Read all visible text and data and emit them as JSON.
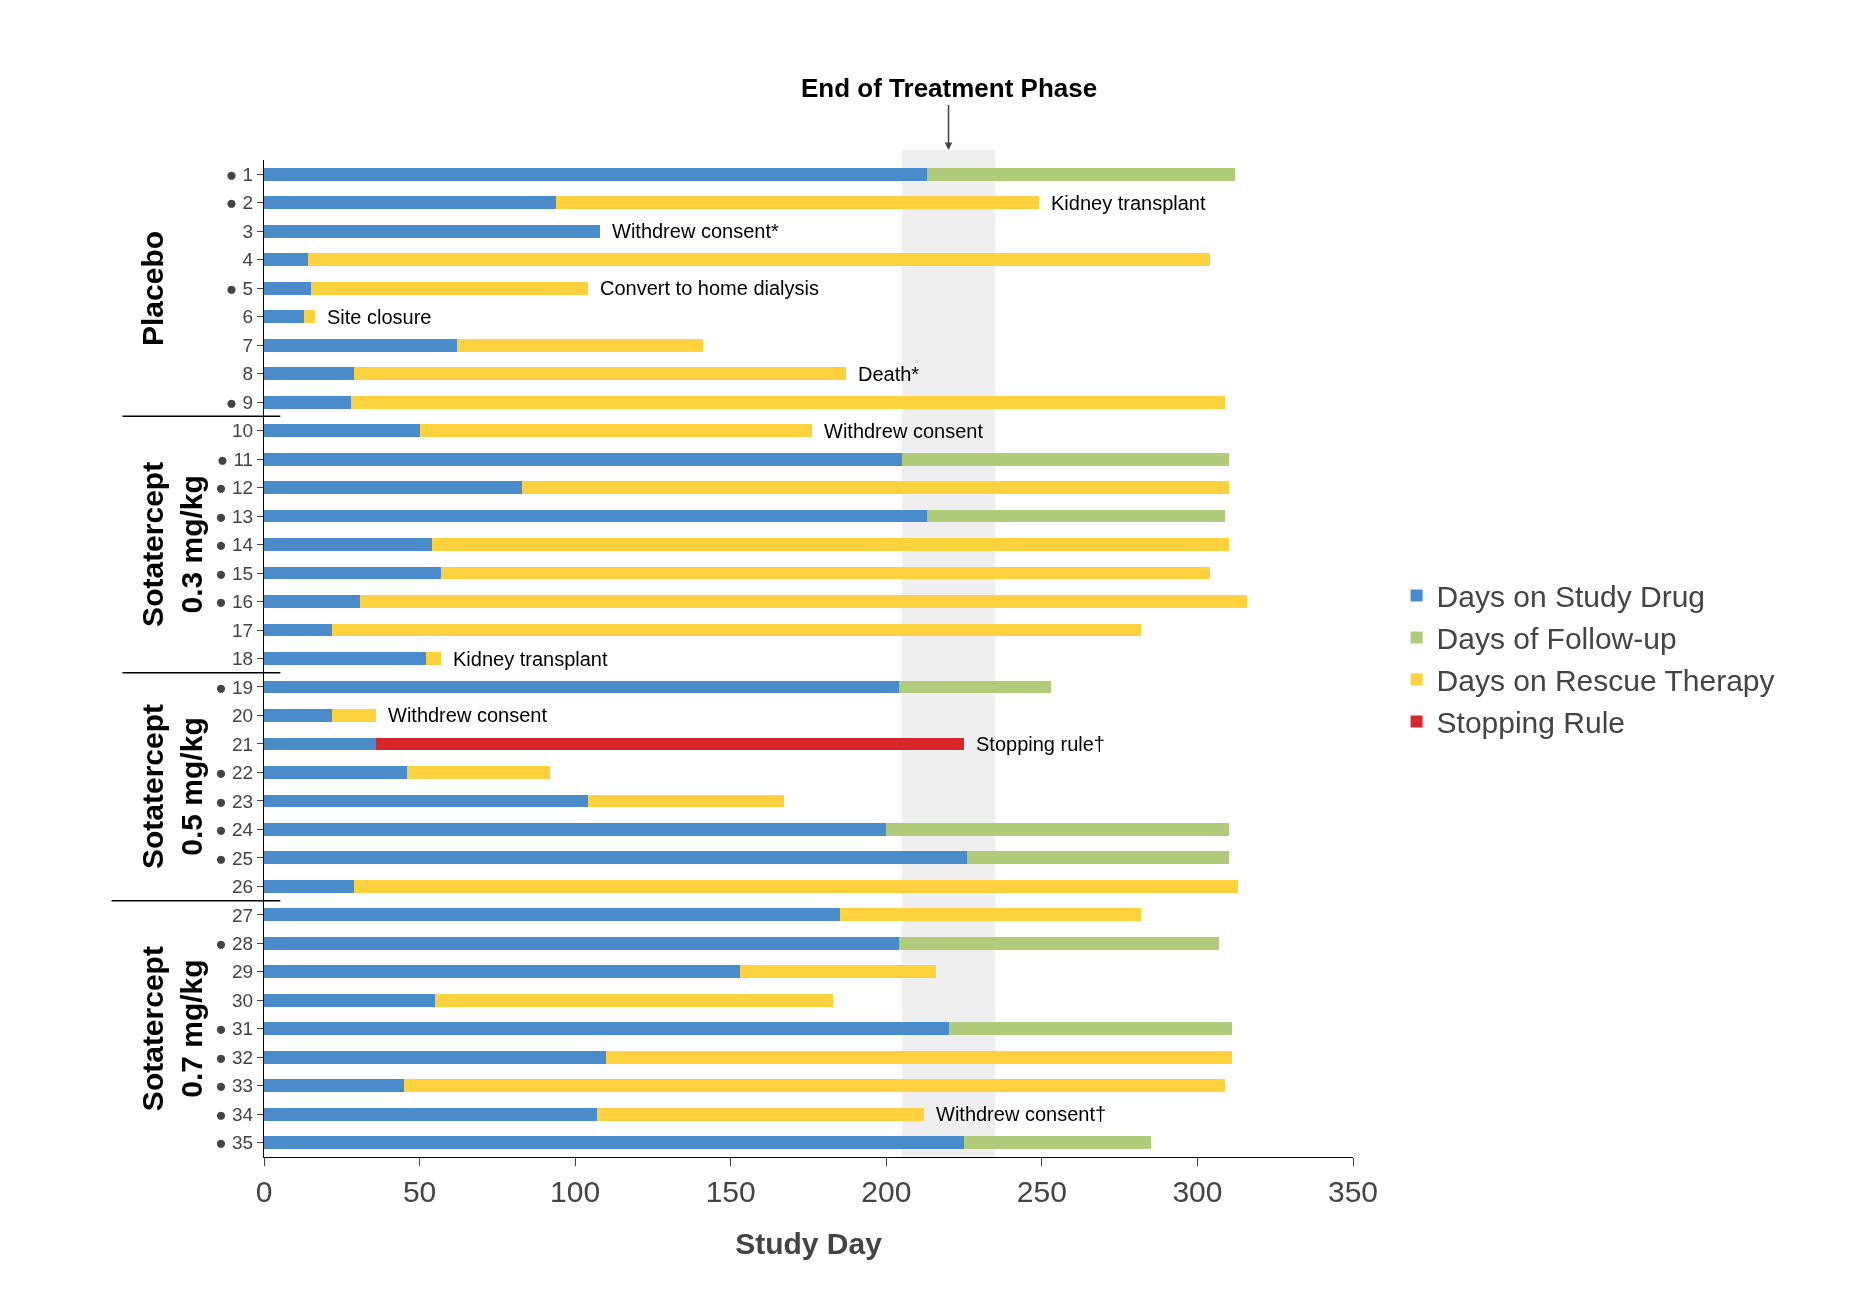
{
  "chart_data": {
    "type": "bar",
    "orientation": "horizontal",
    "stacked": true,
    "categories": [
      "● 1",
      "● 2",
      "3",
      "4",
      "● 5",
      "6",
      "7",
      "8",
      "● 9",
      "10",
      "● 11",
      "● 12",
      "● 13",
      "● 14",
      "● 15",
      "● 16",
      "17",
      "18",
      "● 19",
      "20",
      "21",
      "● 22",
      "● 23",
      "● 24",
      "● 25",
      "26",
      "27",
      "● 28",
      "29",
      "30",
      "● 31",
      "● 32",
      "● 33",
      "● 34",
      "● 35"
    ],
    "series": [
      {
        "name": "Days on Study Drug",
        "color": "#4a8ccb",
        "values": [
          213,
          94,
          108,
          14,
          15,
          13,
          62,
          29,
          28,
          50,
          205,
          83,
          213,
          54,
          57,
          31,
          22,
          52,
          204,
          22,
          36,
          46,
          104,
          200,
          226,
          29,
          185,
          204,
          153,
          55,
          220,
          110,
          45,
          107,
          225
        ]
      },
      {
        "name": "Days of Follow-up",
        "color": "#b0cc7a",
        "values": [
          99,
          null,
          null,
          null,
          null,
          null,
          null,
          null,
          null,
          null,
          105,
          null,
          96,
          null,
          null,
          null,
          null,
          null,
          49,
          null,
          null,
          null,
          null,
          110,
          84,
          null,
          null,
          103,
          null,
          null,
          91,
          null,
          null,
          null,
          60
        ]
      },
      {
        "name": "Days on Rescue Therapy",
        "color": "#fdd23e",
        "values": [
          null,
          155,
          null,
          290,
          89,
          3.5,
          79,
          158,
          281,
          126,
          null,
          227,
          null,
          256,
          247,
          285,
          260,
          5,
          null,
          14,
          null,
          46,
          63,
          null,
          null,
          284,
          97,
          null,
          63,
          128,
          null,
          201,
          264,
          105,
          null
        ]
      },
      {
        "name": "Stopping Rule",
        "color": "#d6282b",
        "values": [
          null,
          null,
          null,
          null,
          null,
          null,
          null,
          null,
          null,
          null,
          null,
          null,
          null,
          null,
          null,
          null,
          null,
          null,
          null,
          null,
          189,
          null,
          null,
          null,
          null,
          null,
          null,
          null,
          null,
          null,
          null,
          null,
          null,
          null,
          null
        ]
      }
    ],
    "xlabel": "Study Day",
    "xlim": [
      0,
      350
    ],
    "xticks": [
      0,
      50,
      100,
      150,
      200,
      250,
      300,
      350
    ],
    "grid": false,
    "legend": "right",
    "bands": [
      {
        "axis": "x",
        "from": 205,
        "to": 235,
        "label": "End of Treatment Phase",
        "color": "#efefef"
      }
    ],
    "annotations": [
      "Placebo",
      "Sotatercept\n0.3 mg/kg",
      "Sotatercept\n0.5 mg/kg",
      "Sotatercept\n0.7 mg/kg",
      {
        "text": "Kidney transplant",
        "x": 249,
        "y": "● 2"
      },
      {
        "text": "Withdrew consent*",
        "x": 108,
        "y": "3"
      },
      {
        "text": "Convert to home dialysis",
        "x": 104,
        "y": "● 5"
      },
      {
        "text": "Site closure",
        "x": 16.5,
        "y": "6"
      },
      {
        "text": "Death*",
        "x": 187,
        "y": "8"
      },
      {
        "text": "Withdrew consent",
        "x": 176,
        "y": "10"
      },
      {
        "text": "Kidney transplant",
        "x": 57,
        "y": "18"
      },
      {
        "text": "Withdrew consent",
        "x": 36,
        "y": "20"
      },
      {
        "text": "Stopping rule†",
        "x": 225,
        "y": "21"
      },
      {
        "text": "Withdrew consent†",
        "x": 212,
        "y": "● 34"
      }
    ]
  }
}
